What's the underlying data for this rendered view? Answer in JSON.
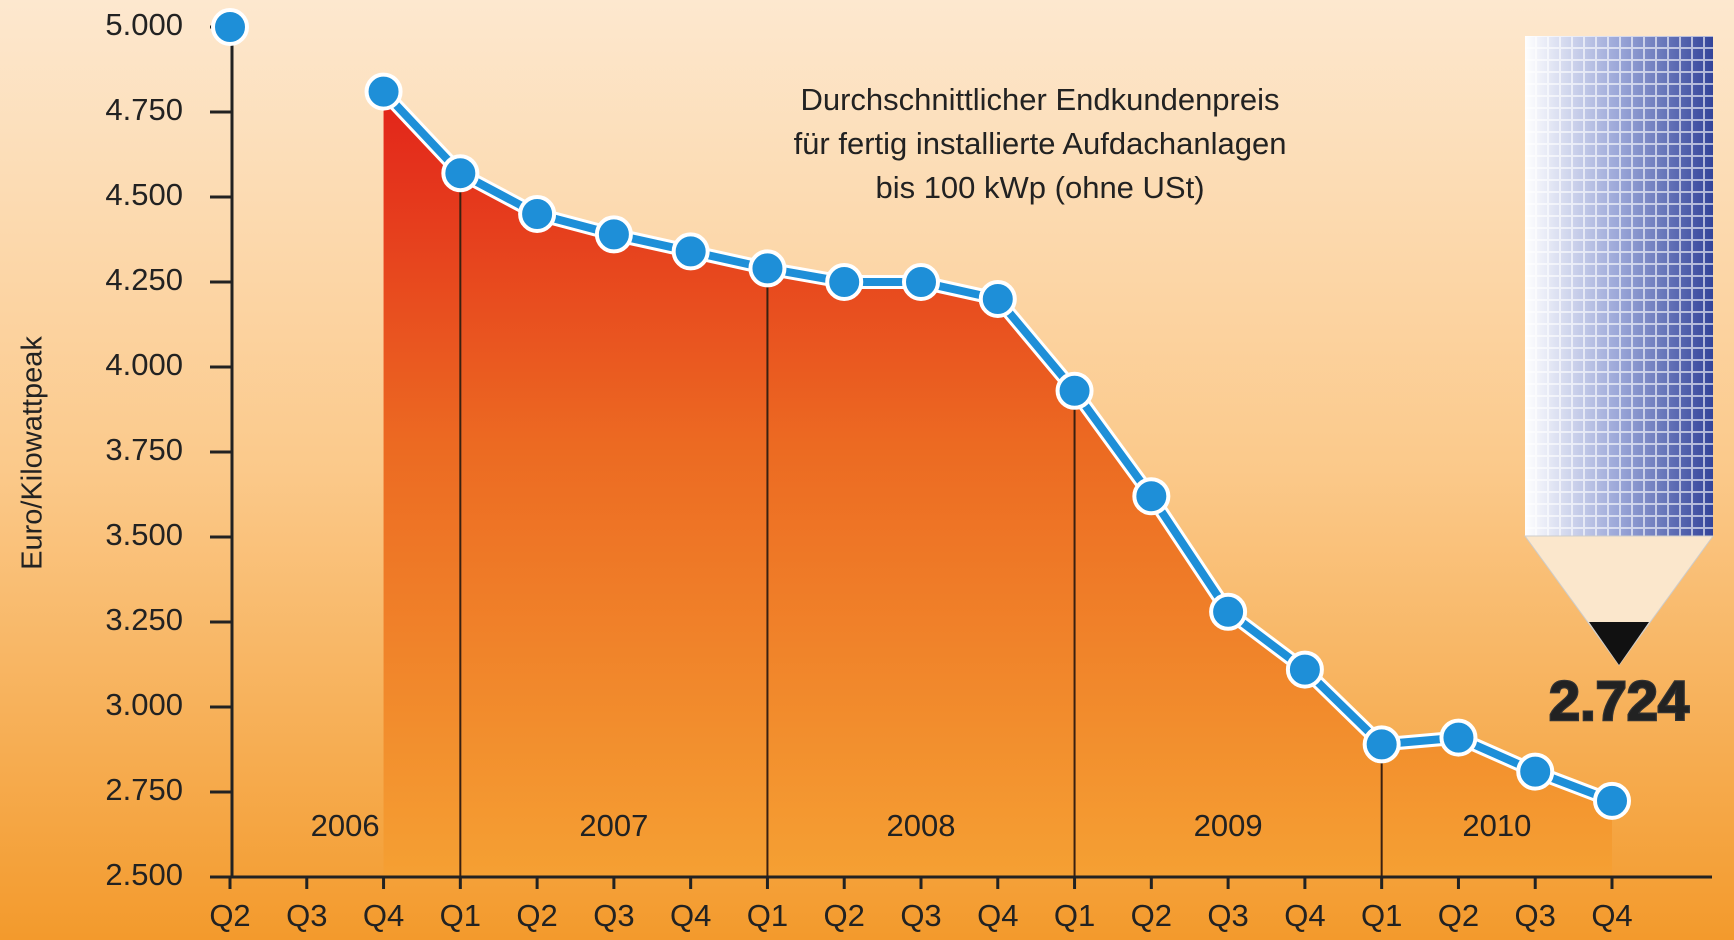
{
  "chart_data": {
    "type": "line",
    "title": [
      "Durchschnittlicher Endkundenpreis",
      "für fertig installierte Aufdachanlagen",
      "bis 100 kWp (ohne USt)"
    ],
    "y_label": "Euro/Kilowattpeak",
    "categories": [
      "Q2",
      "Q3",
      "Q4",
      "Q1",
      "Q2",
      "Q3",
      "Q4",
      "Q1",
      "Q2",
      "Q3",
      "Q4",
      "Q1",
      "Q2",
      "Q3",
      "Q4",
      "Q1",
      "Q2",
      "Q3",
      "Q4"
    ],
    "years": [
      "2006",
      "2007",
      "2008",
      "2009",
      "2010"
    ],
    "series": [
      {
        "color": "#1e8fd8",
        "values": [
          5000,
          null,
          4810,
          4570,
          4450,
          4390,
          4340,
          4290,
          4250,
          4250,
          4200,
          3930,
          3620,
          3280,
          3110,
          2890,
          2910,
          2810,
          2724
        ],
        "value_labels": [
          null,
          null,
          null,
          null,
          null,
          null,
          null,
          null,
          null,
          null,
          null,
          null,
          null,
          null,
          null,
          null,
          null,
          null,
          "2.724"
        ]
      }
    ],
    "ylim": [
      2500,
      5000
    ],
    "yticks": [
      {
        "value": 2500,
        "label": "2.500"
      },
      {
        "value": 2750,
        "label": "2.750"
      },
      {
        "value": 3000,
        "label": "3.000"
      },
      {
        "value": 3250,
        "label": "3.250"
      },
      {
        "value": 3500,
        "label": "3.500"
      },
      {
        "value": 3750,
        "label": "3.750"
      },
      {
        "value": 4000,
        "label": "4.000"
      },
      {
        "value": 4250,
        "label": "4.250"
      },
      {
        "value": 4500,
        "label": "4.500"
      },
      {
        "value": 4750,
        "label": "4.750"
      },
      {
        "value": 5000,
        "label": "5.000"
      }
    ]
  }
}
